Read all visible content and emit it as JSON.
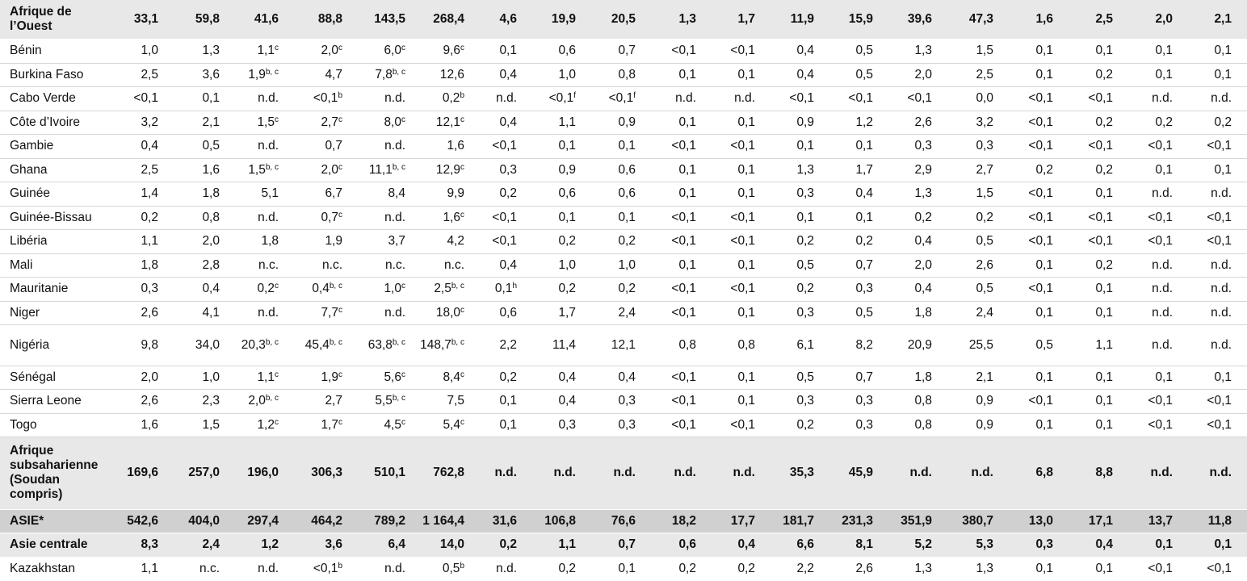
{
  "table": {
    "rows": [
      {
        "label": "Afrique de l’Ouest",
        "cells": [
          "33,1",
          "59,8",
          "41,6",
          "88,8",
          "143,5",
          "268,4",
          "4,6",
          "19,9",
          "20,5",
          "1,3",
          "1,7",
          "11,9",
          "15,9",
          "39,6",
          "47,3",
          "1,6",
          "2,5",
          "2,0",
          "2,1"
        ]
      },
      {
        "label": "Bénin",
        "cells": [
          "1,0",
          "1,3",
          {
            "v": "1,1",
            "sup": "c"
          },
          {
            "v": "2,0",
            "sup": "c"
          },
          {
            "v": "6,0",
            "sup": "c"
          },
          {
            "v": "9,6",
            "sup": "c"
          },
          "0,1",
          "0,6",
          "0,7",
          "<0,1",
          "<0,1",
          "0,4",
          "0,5",
          "1,3",
          "1,5",
          "0,1",
          "0,1",
          "0,1",
          "0,1"
        ]
      },
      {
        "label": "Burkina Faso",
        "cells": [
          "2,5",
          "3,6",
          {
            "v": "1,9",
            "sup": "b, c"
          },
          "4,7",
          {
            "v": "7,8",
            "sup": "b, c"
          },
          "12,6",
          "0,4",
          "1,0",
          "0,8",
          "0,1",
          "0,1",
          "0,4",
          "0,5",
          "2,0",
          "2,5",
          "0,1",
          "0,2",
          "0,1",
          "0,1"
        ]
      },
      {
        "label": "Cabo Verde",
        "cells": [
          "<0,1",
          "0,1",
          "n.d.",
          {
            "v": "<0,1",
            "sup": "b"
          },
          "n.d.",
          {
            "v": "0,2",
            "sup": "b"
          },
          "n.d.",
          {
            "v": "<0,1",
            "sup": "f"
          },
          {
            "v": "<0,1",
            "sup": "f"
          },
          "n.d.",
          "n.d.",
          "<0,1",
          "<0,1",
          "<0,1",
          "0,0",
          "<0,1",
          "<0,1",
          "n.d.",
          "n.d."
        ]
      },
      {
        "label": "Côte d’Ivoire",
        "cells": [
          "3,2",
          "2,1",
          {
            "v": "1,5",
            "sup": "c"
          },
          {
            "v": "2,7",
            "sup": "c"
          },
          {
            "v": "8,0",
            "sup": "c"
          },
          {
            "v": "12,1",
            "sup": "c"
          },
          "0,4",
          "1,1",
          "0,9",
          "0,1",
          "0,1",
          "0,9",
          "1,2",
          "2,6",
          "3,2",
          "<0,1",
          "0,2",
          "0,2",
          "0,2"
        ]
      },
      {
        "label": "Gambie",
        "cells": [
          "0,4",
          "0,5",
          "n.d.",
          "0,7",
          "n.d.",
          "1,6",
          "<0,1",
          "0,1",
          "0,1",
          "<0,1",
          "<0,1",
          "0,1",
          "0,1",
          "0,3",
          "0,3",
          "<0,1",
          "<0,1",
          "<0,1",
          "<0,1"
        ]
      },
      {
        "label": "Ghana",
        "cells": [
          "2,5",
          "1,6",
          {
            "v": "1,5",
            "sup": "b, c"
          },
          {
            "v": "2,0",
            "sup": "c"
          },
          {
            "v": "11,1",
            "sup": "b, c"
          },
          {
            "v": "12,9",
            "sup": "c"
          },
          "0,3",
          "0,9",
          "0,6",
          "0,1",
          "0,1",
          "1,3",
          "1,7",
          "2,9",
          "2,7",
          "0,2",
          "0,2",
          "0,1",
          "0,1"
        ]
      },
      {
        "label": "Guinée",
        "cells": [
          "1,4",
          "1,8",
          "5,1",
          "6,7",
          "8,4",
          "9,9",
          "0,2",
          "0,6",
          "0,6",
          "0,1",
          "0,1",
          "0,3",
          "0,4",
          "1,3",
          "1,5",
          "<0,1",
          "0,1",
          "n.d.",
          "n.d."
        ]
      },
      {
        "label": "Guinée-Bissau",
        "cells": [
          "0,2",
          "0,8",
          "n.d.",
          {
            "v": "0,7",
            "sup": "c"
          },
          "n.d.",
          {
            "v": "1,6",
            "sup": "c"
          },
          "<0,1",
          "0,1",
          "0,1",
          "<0,1",
          "<0,1",
          "0,1",
          "0,1",
          "0,2",
          "0,2",
          "<0,1",
          "<0,1",
          "<0,1",
          "<0,1"
        ]
      },
      {
        "label": "Libéria",
        "cells": [
          "1,1",
          "2,0",
          "1,8",
          "1,9",
          "3,7",
          "4,2",
          "<0,1",
          "0,2",
          "0,2",
          "<0,1",
          "<0,1",
          "0,2",
          "0,2",
          "0,4",
          "0,5",
          "<0,1",
          "<0,1",
          "<0,1",
          "<0,1"
        ]
      },
      {
        "label": "Mali",
        "cells": [
          "1,8",
          "2,8",
          "n.c.",
          "n.c.",
          "n.c.",
          "n.c.",
          "0,4",
          "1,0",
          "1,0",
          "0,1",
          "0,1",
          "0,5",
          "0,7",
          "2,0",
          "2,6",
          "0,1",
          "0,2",
          "n.d.",
          "n.d."
        ]
      },
      {
        "label": "Mauritanie",
        "cells": [
          "0,3",
          "0,4",
          {
            "v": "0,2",
            "sup": "c"
          },
          {
            "v": "0,4",
            "sup": "b, c"
          },
          {
            "v": "1,0",
            "sup": "c"
          },
          {
            "v": "2,5",
            "sup": "b, c"
          },
          {
            "v": "0,1",
            "sup": "h"
          },
          "0,2",
          "0,2",
          "<0,1",
          "<0,1",
          "0,2",
          "0,3",
          "0,4",
          "0,5",
          "<0,1",
          "0,1",
          "n.d.",
          "n.d."
        ]
      },
      {
        "label": "Niger",
        "cells": [
          "2,6",
          "4,1",
          "n.d.",
          {
            "v": "7,7",
            "sup": "c"
          },
          "n.d.",
          {
            "v": "18,0",
            "sup": "c"
          },
          "0,6",
          "1,7",
          "2,4",
          "<0,1",
          "0,1",
          "0,3",
          "0,5",
          "1,8",
          "2,4",
          "0,1",
          "0,1",
          "n.d.",
          "n.d."
        ]
      },
      {
        "label": "Nigéria",
        "cells": [
          "9,8",
          "34,0",
          {
            "v": "20,3",
            "sup": "b, c"
          },
          {
            "v": "45,4",
            "sup": "b, c"
          },
          {
            "v": "63,8",
            "sup": "b, c"
          },
          {
            "v": "148,7",
            "sup": "b, c"
          },
          "2,2",
          "11,4",
          "12,1",
          "0,8",
          "0,8",
          "6,1",
          "8,2",
          "20,9",
          "25,5",
          "0,5",
          "1,1",
          "n.d.",
          "n.d."
        ]
      },
      {
        "label": "Sénégal",
        "cells": [
          "2,0",
          "1,0",
          {
            "v": "1,1",
            "sup": "c"
          },
          {
            "v": "1,9",
            "sup": "c"
          },
          {
            "v": "5,6",
            "sup": "c"
          },
          {
            "v": "8,4",
            "sup": "c"
          },
          "0,2",
          "0,4",
          "0,4",
          "<0,1",
          "0,1",
          "0,5",
          "0,7",
          "1,8",
          "2,1",
          "0,1",
          "0,1",
          "0,1",
          "0,1"
        ]
      },
      {
        "label": "Sierra Leone",
        "cells": [
          "2,6",
          "2,3",
          {
            "v": "2,0",
            "sup": "b, c"
          },
          "2,7",
          {
            "v": "5,5",
            "sup": "b, c"
          },
          "7,5",
          "0,1",
          "0,4",
          "0,3",
          "<0,1",
          "0,1",
          "0,3",
          "0,3",
          "0,8",
          "0,9",
          "<0,1",
          "0,1",
          "<0,1",
          "<0,1"
        ]
      },
      {
        "label": "Togo",
        "cells": [
          "1,6",
          "1,5",
          {
            "v": "1,2",
            "sup": "c"
          },
          {
            "v": "1,7",
            "sup": "c"
          },
          {
            "v": "4,5",
            "sup": "c"
          },
          {
            "v": "5,4",
            "sup": "c"
          },
          "0,1",
          "0,3",
          "0,3",
          "<0,1",
          "<0,1",
          "0,2",
          "0,3",
          "0,8",
          "0,9",
          "0,1",
          "0,1",
          "<0,1",
          "<0,1"
        ]
      },
      {
        "label": "Afrique subsaharienne (Soudan compris)",
        "cells": [
          "169,6",
          "257,0",
          "196,0",
          "306,3",
          "510,1",
          "762,8",
          "n.d.",
          "n.d.",
          "n.d.",
          "n.d.",
          "n.d.",
          "35,3",
          "45,9",
          "n.d.",
          "n.d.",
          "6,8",
          "8,8",
          "n.d.",
          "n.d."
        ]
      },
      {
        "label": "ASIE*",
        "cells": [
          "542,6",
          "404,0",
          "297,4",
          "464,2",
          "789,2",
          "1 164,4",
          "31,6",
          "106,8",
          "76,6",
          "18,2",
          "17,7",
          "181,7",
          "231,3",
          "351,9",
          "380,7",
          "13,0",
          "17,1",
          "13,7",
          "11,8"
        ]
      },
      {
        "label": "Asie centrale",
        "cells": [
          "8,3",
          "2,4",
          "1,2",
          "3,6",
          "6,4",
          "14,0",
          "0,2",
          "1,1",
          "0,7",
          "0,6",
          "0,4",
          "6,6",
          "8,1",
          "5,2",
          "5,3",
          "0,3",
          "0,4",
          "0,1",
          "0,1"
        ]
      },
      {
        "label": "Kazakhstan",
        "cells": [
          "1,1",
          "n.c.",
          "n.d.",
          {
            "v": "<0,1",
            "sup": "b"
          },
          "n.d.",
          {
            "v": "0,5",
            "sup": "b"
          },
          "n.d.",
          "0,2",
          "0,1",
          "0,2",
          "0,2",
          "2,2",
          "2,6",
          "1,3",
          "1,3",
          "0,1",
          "0,1",
          "<0,1",
          "<0,1"
        ]
      }
    ]
  }
}
